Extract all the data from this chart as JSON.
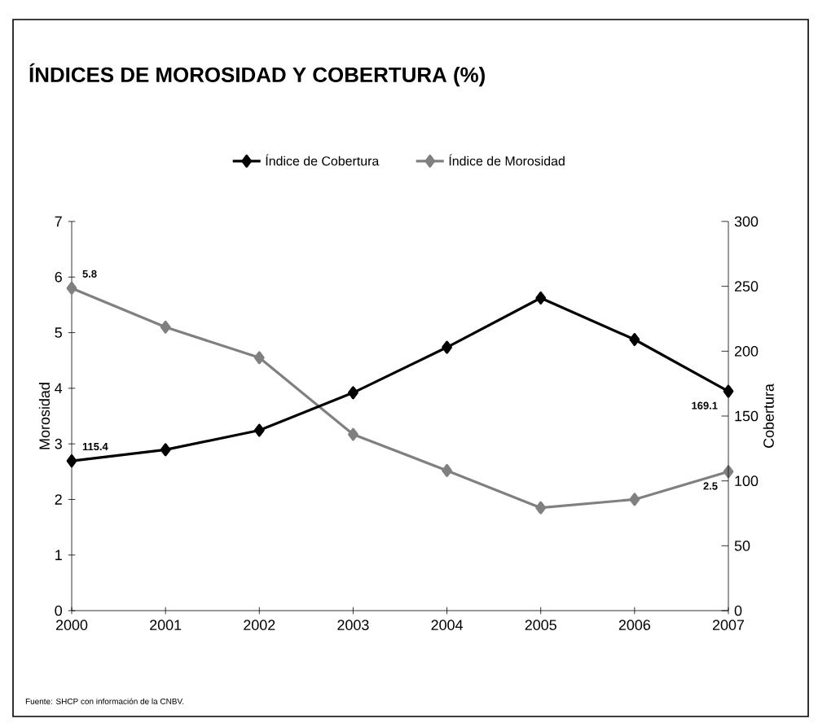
{
  "chart_data": {
    "type": "line",
    "title": "ÍNDICES DE MOROSIDAD Y COBERTURA (%)",
    "categories": [
      "2000",
      "2001",
      "2002",
      "2003",
      "2004",
      "2005",
      "2006",
      "2007"
    ],
    "series": [
      {
        "name": "Índice de Cobertura",
        "color": "#000000",
        "axis": "y2",
        "values": [
          115.4,
          124,
          139,
          168,
          203,
          241,
          209,
          169.1
        ],
        "value_labels": [
          "115.4",
          null,
          null,
          null,
          null,
          null,
          null,
          "169.1"
        ]
      },
      {
        "name": "Índice de Morosidad",
        "color": "#808080",
        "values": [
          5.8,
          5.1,
          4.55,
          3.17,
          2.52,
          1.85,
          2.0,
          2.5
        ],
        "value_labels": [
          "5.8",
          null,
          null,
          null,
          null,
          null,
          null,
          "2.5"
        ]
      }
    ],
    "ylabel": "Morosidad",
    "y2label": "Cobertura",
    "ylim": [
      0,
      7
    ],
    "yticks": [
      0,
      1,
      2,
      3,
      4,
      5,
      6,
      7
    ],
    "y2lim": [
      0,
      300
    ],
    "y2ticks": [
      0,
      50,
      100,
      150,
      200,
      250,
      300
    ],
    "marker": "diamond",
    "line_style": "solid",
    "legend": "top",
    "grid": false,
    "annotations": [
      "Fuente: SHCP con información de la CNBV."
    ]
  }
}
